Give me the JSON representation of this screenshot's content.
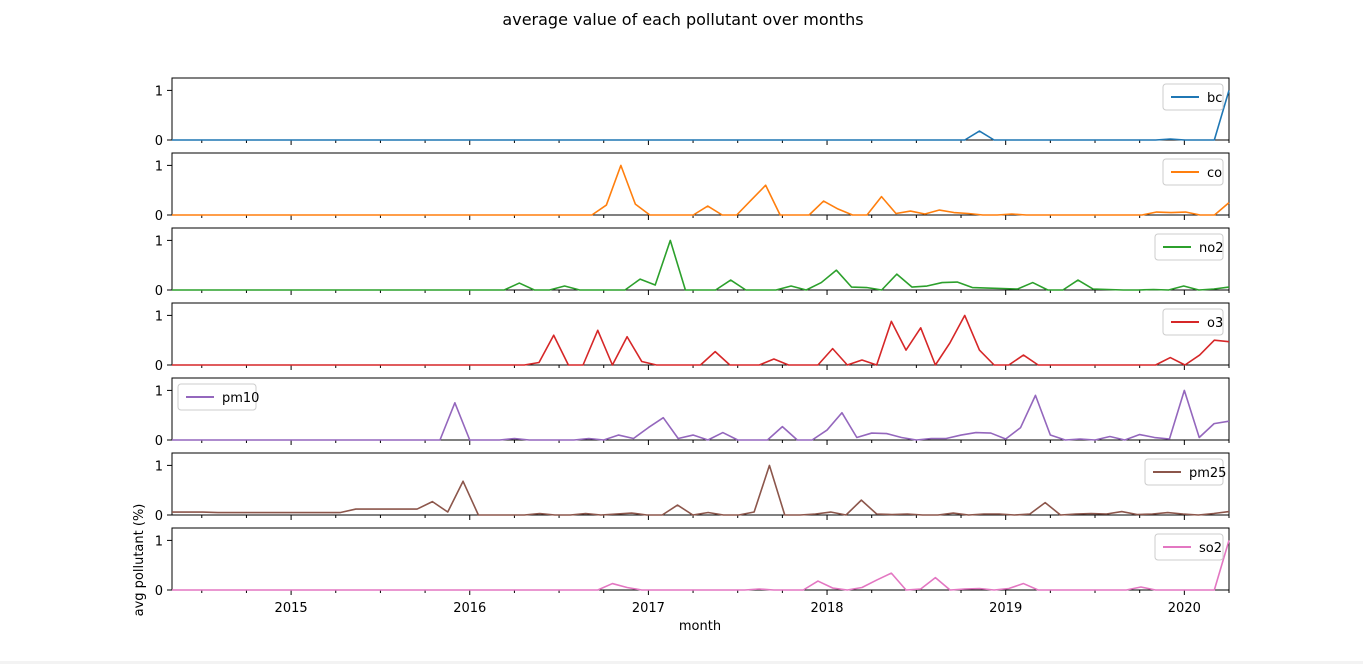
{
  "chart_data": {
    "type": "line",
    "title": "average value of each pollutant over months",
    "xlabel": "month",
    "ylabel": "avg pollutant (%)",
    "x_start": "2014-05",
    "x_end": "2020-04",
    "x_ticks": [
      "2015",
      "2016",
      "2017",
      "2018",
      "2019",
      "2020"
    ],
    "y_ticks": [
      "0",
      "1"
    ],
    "ylim": [
      0,
      1.25
    ],
    "grid": false,
    "series": [
      {
        "name": "bc",
        "color": "#1f77b4",
        "legend": "top-right",
        "values": [
          0,
          0,
          0,
          0,
          0,
          0,
          0,
          0,
          0,
          0,
          0,
          0,
          0,
          0,
          0,
          0,
          0,
          0,
          0,
          0,
          0,
          0,
          0,
          0,
          0,
          0,
          0,
          0,
          0,
          0,
          0,
          0,
          0,
          0,
          0,
          0,
          0,
          0,
          0,
          0,
          0,
          0,
          0,
          0,
          0,
          0,
          0,
          0,
          0,
          0,
          0,
          0,
          0,
          0,
          0,
          0.18,
          0,
          0,
          0,
          0,
          0,
          0,
          0,
          0,
          0,
          0,
          0,
          0,
          0.02,
          0,
          0,
          0,
          1
        ]
      },
      {
        "name": "co",
        "color": "#ff7f0e",
        "legend": "top-right",
        "values": [
          0,
          0,
          0,
          0,
          0,
          0,
          0,
          0,
          0,
          0,
          0,
          0,
          0,
          0,
          0,
          0,
          0,
          0,
          0,
          0,
          0,
          0,
          0,
          0,
          0,
          0,
          0,
          0,
          0,
          0,
          0.2,
          1,
          0.22,
          0,
          0,
          0,
          0,
          0.18,
          0,
          0,
          0.3,
          0.6,
          0,
          0,
          0,
          0.28,
          0.12,
          0,
          0,
          0.37,
          0.03,
          0.08,
          0.02,
          0.1,
          0.05,
          0.03,
          0,
          0,
          0.02,
          0,
          0,
          0,
          0,
          0,
          0,
          0,
          0,
          0,
          0.06,
          0.05,
          0.06,
          0,
          0,
          0.25
        ]
      },
      {
        "name": "no2",
        "color": "#2ca02c",
        "legend": "top-right",
        "values": [
          0,
          0,
          0,
          0,
          0,
          0,
          0,
          0,
          0,
          0,
          0,
          0,
          0,
          0,
          0,
          0,
          0,
          0,
          0,
          0,
          0,
          0,
          0,
          0.14,
          0,
          0,
          0.08,
          0,
          0,
          0,
          0,
          0.22,
          0.1,
          1,
          0,
          0,
          0,
          0.2,
          0,
          0,
          0,
          0.08,
          0,
          0.15,
          0.4,
          0.06,
          0.05,
          0,
          0.32,
          0.06,
          0.08,
          0.15,
          0.16,
          0.05,
          0.04,
          0.03,
          0.02,
          0.15,
          0,
          0,
          0.2,
          0.02,
          0.01,
          0,
          0,
          0.01,
          0,
          0.08,
          0,
          0.02,
          0.06
        ]
      },
      {
        "name": "o3",
        "color": "#d62728",
        "legend": "top-right",
        "values": [
          0,
          0,
          0,
          0,
          0,
          0,
          0,
          0,
          0,
          0,
          0,
          0,
          0,
          0,
          0,
          0,
          0,
          0,
          0,
          0,
          0,
          0,
          0,
          0,
          0,
          0.05,
          0.6,
          0,
          0,
          0.7,
          0,
          0.57,
          0.07,
          0,
          0,
          0,
          0,
          0.27,
          0,
          0,
          0,
          0.12,
          0,
          0,
          0,
          0.33,
          0,
          0.1,
          0,
          0.88,
          0.3,
          0.75,
          0,
          0.45,
          1,
          0.3,
          0,
          0,
          0.2,
          0,
          0,
          0,
          0,
          0,
          0,
          0,
          0,
          0,
          0.15,
          0,
          0.2,
          0.5,
          0.47
        ]
      },
      {
        "name": "pm10",
        "color": "#9467bd",
        "legend": "top-left",
        "values": [
          0,
          0,
          0,
          0,
          0,
          0,
          0,
          0,
          0,
          0,
          0,
          0,
          0,
          0,
          0,
          0,
          0,
          0,
          0,
          0.75,
          0,
          0,
          0,
          0.03,
          0,
          0,
          0,
          0,
          0.03,
          0,
          0.1,
          0.03,
          0.25,
          0.45,
          0.03,
          0.1,
          0,
          0.15,
          0,
          0,
          0,
          0.27,
          0,
          0,
          0.2,
          0.55,
          0.05,
          0.14,
          0.13,
          0.05,
          0,
          0.03,
          0.03,
          0.1,
          0.15,
          0.14,
          0.02,
          0.25,
          0.9,
          0.1,
          0,
          0.02,
          0,
          0.07,
          0,
          0.11,
          0.05,
          0.02,
          1,
          0.05,
          0.33,
          0.38
        ]
      },
      {
        "name": "pm25",
        "color": "#8c564b",
        "legend": "top-right",
        "values": [
          0.06,
          0.06,
          0.06,
          0.05,
          0.05,
          0.05,
          0.05,
          0.05,
          0.05,
          0.05,
          0.05,
          0.05,
          0.12,
          0.12,
          0.12,
          0.12,
          0.12,
          0.27,
          0.06,
          0.68,
          0,
          0,
          0,
          0,
          0.03,
          0,
          0,
          0.03,
          0,
          0.02,
          0.04,
          0,
          0,
          0.2,
          0,
          0.05,
          0,
          0,
          0.06,
          1,
          0,
          0,
          0.02,
          0.06,
          0,
          0.3,
          0.02,
          0.01,
          0.02,
          0,
          0,
          0.04,
          0,
          0.02,
          0.02,
          0,
          0.02,
          0.25,
          0,
          0.02,
          0.03,
          0.02,
          0.07,
          0.01,
          0.02,
          0.05,
          0.02,
          0,
          0.03,
          0.07
        ]
      },
      {
        "name": "so2",
        "color": "#e377c2",
        "legend": "top-right",
        "values": [
          0,
          0,
          0,
          0,
          0,
          0,
          0,
          0,
          0,
          0,
          0,
          0,
          0,
          0,
          0,
          0,
          0,
          0,
          0,
          0,
          0,
          0,
          0,
          0,
          0,
          0,
          0,
          0,
          0,
          0,
          0.13,
          0.05,
          0,
          0,
          0,
          0,
          0,
          0,
          0,
          0,
          0.02,
          0,
          0,
          0,
          0.18,
          0.04,
          0,
          0.05,
          0.2,
          0.34,
          0,
          0.02,
          0.25,
          0,
          0.02,
          0.03,
          0,
          0.03,
          0.13,
          0,
          0,
          0,
          0,
          0,
          0,
          0,
          0.06,
          0,
          0,
          0,
          0,
          0,
          1
        ]
      }
    ]
  }
}
